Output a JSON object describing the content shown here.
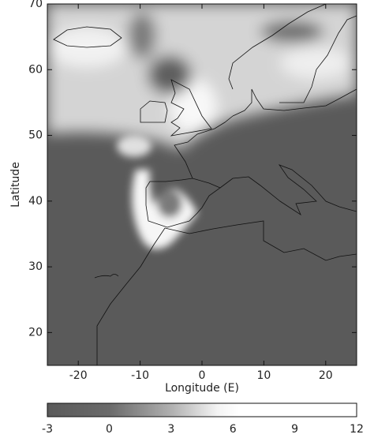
{
  "map": {
    "xlabel": "Longitude (E)",
    "ylabel": "Latitude",
    "xlim": [
      -25,
      25
    ],
    "xticks": [
      -20,
      -10,
      0,
      10,
      20
    ],
    "ylim": [
      15,
      70
    ],
    "yticks": [
      20,
      30,
      40,
      50,
      60,
      70
    ]
  },
  "colorbar": {
    "lim": [
      -3,
      12
    ],
    "ticks": [
      -3,
      0,
      3,
      6,
      9,
      12
    ]
  }
}
